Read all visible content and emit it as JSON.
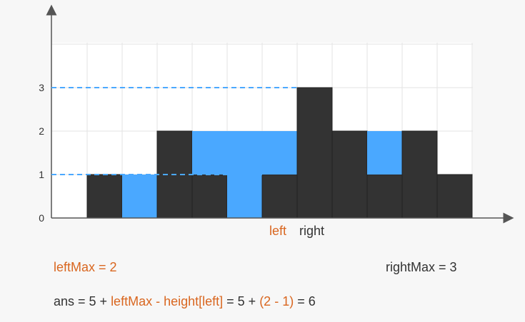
{
  "colors": {
    "bar": "#333333",
    "water": "#4aa8ff",
    "highlight": "#d9661f",
    "text": "#333333",
    "grid": "#e3e3e3"
  },
  "chart_data": {
    "type": "bar",
    "yticks": [
      "0",
      "1",
      "2",
      "3"
    ],
    "ylim": [
      0,
      4
    ],
    "heights": [
      1,
      0,
      2,
      1,
      0,
      1,
      3,
      2,
      1,
      2,
      1
    ],
    "water": [
      0,
      1,
      0,
      1,
      2,
      1,
      0,
      0,
      1,
      0,
      0
    ],
    "dashed_levels": [
      {
        "y": 3,
        "to_index": 6
      },
      {
        "y": 1,
        "to_index": 5
      }
    ]
  },
  "labels": {
    "pointer_left": "left",
    "pointer_right": "right",
    "left_max": "leftMax = 2",
    "right_max": "rightMax = 3",
    "formula": {
      "p1": "ans = 5 + ",
      "p2": "leftMax - height[left]",
      "p3": " = 5 + ",
      "p4": "(2 - 1)",
      "p5": " = 6"
    }
  }
}
